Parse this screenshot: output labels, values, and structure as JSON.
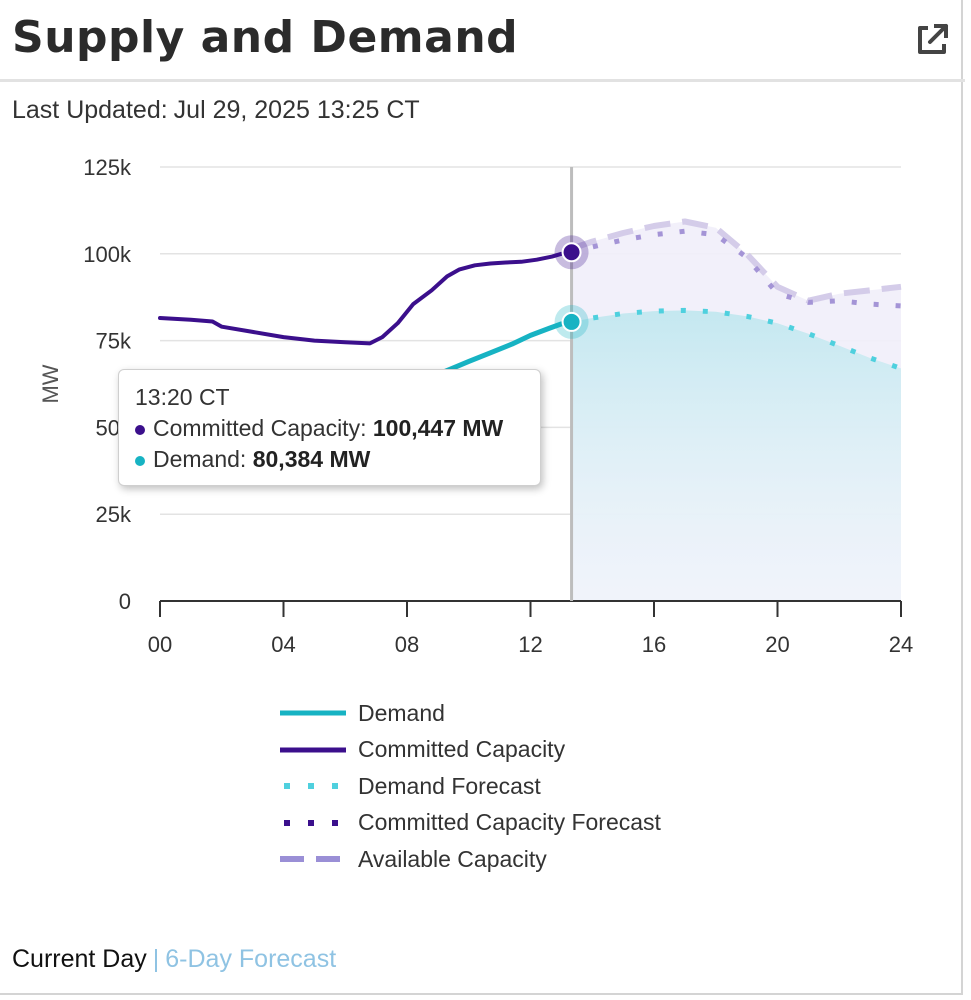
{
  "header": {
    "title": "Supply and Demand",
    "external_link_icon": "external-link-icon"
  },
  "updated": {
    "label": "Last Updated:",
    "value": "Jul 29, 2025 13:25 CT"
  },
  "chart_data": {
    "type": "line",
    "ylabel": "MW",
    "xlabel": "",
    "ylim": [
      0,
      125000
    ],
    "xlim": [
      0,
      24
    ],
    "y_ticks": [
      "0",
      "25k",
      "50k",
      "75k",
      "100k",
      "125k"
    ],
    "y_tick_values": [
      0,
      25000,
      50000,
      75000,
      100000,
      125000
    ],
    "x_ticks": [
      "00",
      "04",
      "08",
      "12",
      "16",
      "20",
      "24"
    ],
    "x_tick_values": [
      0,
      4,
      8,
      12,
      16,
      20,
      24
    ],
    "cursor_hour": 13.33,
    "series": [
      {
        "name": "Committed Capacity",
        "style": "solid",
        "color": "#3b0f8c",
        "x": [
          0,
          1,
          1.7,
          2,
          3,
          4,
          5,
          6,
          6.8,
          7.2,
          7.7,
          8.2,
          8.8,
          9.3,
          9.7,
          10.2,
          10.7,
          11.2,
          11.7,
          12.2,
          12.7,
          13.0,
          13.33
        ],
        "y": [
          81500,
          81000,
          80500,
          79000,
          77500,
          76000,
          75000,
          74500,
          74200,
          76000,
          80000,
          85500,
          89500,
          93500,
          95500,
          96700,
          97200,
          97500,
          97700,
          98300,
          99200,
          100000,
          100447
        ]
      },
      {
        "name": "Demand",
        "style": "solid",
        "color": "#17b3c3",
        "x": [
          9.2,
          10,
          10.7,
          11.4,
          12,
          12.6,
          13.0,
          13.33
        ],
        "y": [
          66000,
          69000,
          71500,
          74000,
          76500,
          78500,
          79800,
          80384
        ]
      },
      {
        "name": "Demand Forecast",
        "style": "dotted",
        "color": "#4fd0de",
        "x": [
          13.33,
          14,
          15,
          16,
          17,
          18,
          19,
          20,
          21,
          22,
          23,
          24
        ],
        "y": [
          80384,
          81500,
          82800,
          83500,
          83700,
          83300,
          82000,
          80000,
          77000,
          73500,
          70000,
          67000
        ]
      },
      {
        "name": "Committed Capacity Forecast",
        "style": "dotted",
        "color": "#a494d6",
        "x": [
          13.33,
          14,
          15,
          16,
          17,
          18,
          19,
          20,
          21,
          22,
          23,
          24
        ],
        "y": [
          100447,
          102000,
          104000,
          105500,
          106500,
          105500,
          99000,
          88500,
          86000,
          86500,
          85500,
          85000
        ]
      },
      {
        "name": "Available Capacity",
        "style": "dashed",
        "color": "#d4cce9",
        "x": [
          13.33,
          14,
          15,
          16,
          17,
          18,
          19,
          20,
          21,
          22,
          23,
          24
        ],
        "y": [
          101500,
          103500,
          106000,
          108000,
          109300,
          107500,
          100000,
          90500,
          86500,
          88500,
          89500,
          90500
        ]
      }
    ]
  },
  "tooltip": {
    "time": "13:20 CT",
    "rows": [
      {
        "label": "Committed Capacity:",
        "value": "100,447 MW",
        "color": "#3b0f8c"
      },
      {
        "label": "Demand:",
        "value": "80,384 MW",
        "color": "#17b3c3"
      }
    ]
  },
  "legend": [
    {
      "label": "Demand",
      "color": "#17b3c3",
      "style": "solid"
    },
    {
      "label": "Committed Capacity",
      "color": "#3b0f8c",
      "style": "solid"
    },
    {
      "label": "Demand Forecast",
      "color": "#4fd0de",
      "style": "dotted"
    },
    {
      "label": "Committed Capacity Forecast",
      "color": "#3b0f8c",
      "style": "dotted"
    },
    {
      "label": "Available Capacity",
      "color": "#9a8fd6",
      "style": "dashed"
    }
  ],
  "footer": {
    "current": "Current Day",
    "separator": "|",
    "forecast": "6-Day Forecast"
  }
}
